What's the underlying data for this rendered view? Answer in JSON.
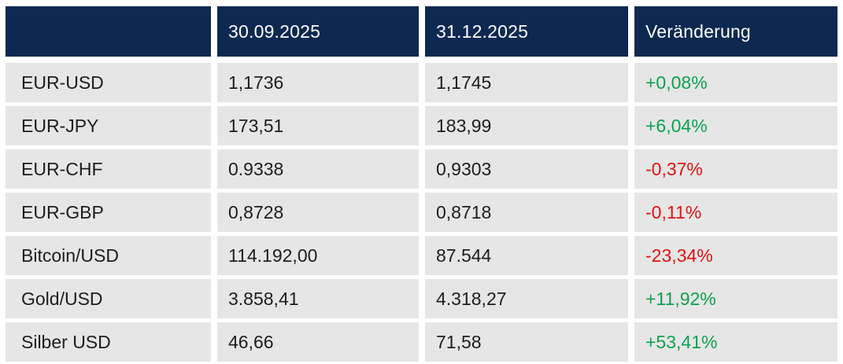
{
  "chart_data": {
    "type": "table",
    "columns": [
      "",
      "30.09.2025",
      "31.12.2025",
      "Veränderung"
    ],
    "rows": [
      [
        "EUR-USD",
        "1,1736",
        "1,1745",
        "+0,08%"
      ],
      [
        "EUR-JPY",
        "173,51",
        "183,99",
        "+6,04%"
      ],
      [
        "EUR-CHF",
        "0.9338",
        "0,9303",
        "-0,37%"
      ],
      [
        "EUR-GBP",
        "0,8728",
        "0,8718",
        "-0,11%"
      ],
      [
        "Bitcoin/USD",
        "114.192,00",
        "87.544",
        "-23,34%"
      ],
      [
        "Gold/USD",
        "3.858,41",
        "4.318,27",
        "+11,92%"
      ],
      [
        "Silber USD",
        "46,66",
        "71,58",
        "+53,41%"
      ]
    ],
    "colors": {
      "header_bg": "#0d2951",
      "header_text": "#ffffff",
      "row_bg": "#e6e6e6",
      "cell_text": "#1d1d1d",
      "positive": "#0ba24e",
      "negative": "#e31212"
    }
  }
}
